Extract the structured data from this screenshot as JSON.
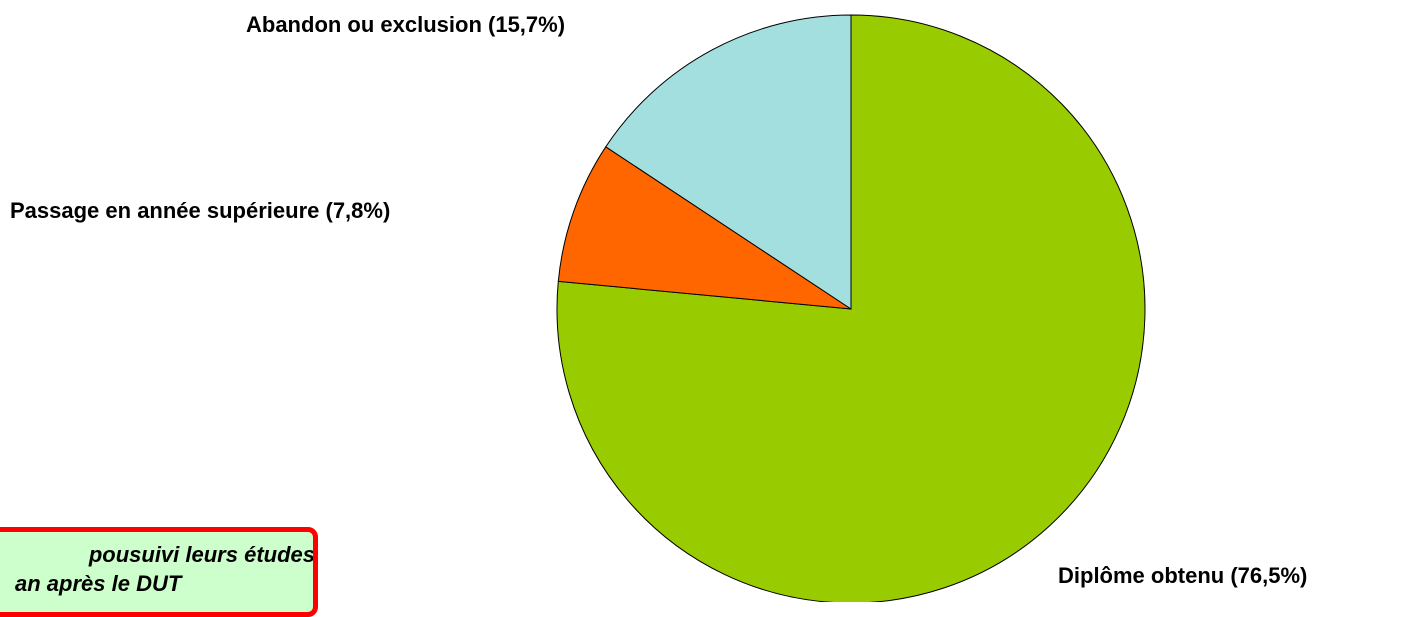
{
  "chart_data": {
    "type": "pie",
    "title": "",
    "start_angle_deg": 0,
    "direction": "clockwise",
    "slices": [
      {
        "label": "Diplôme obtenu (76,5%)",
        "value": 76.5,
        "color": "#99cc00"
      },
      {
        "label": "Passage en année supérieure (7,8%)",
        "value": 7.8,
        "color": "#ff6600"
      },
      {
        "label": "Abandon ou exclusion (15,7%)",
        "value": 15.7,
        "color": "#a4dfdf"
      }
    ],
    "outline_color": "#000000"
  },
  "note": {
    "line1": "pousuivi leurs études",
    "line2": "an après le DUT",
    "background": "#ccffcc",
    "border_color": "#ff0000"
  }
}
